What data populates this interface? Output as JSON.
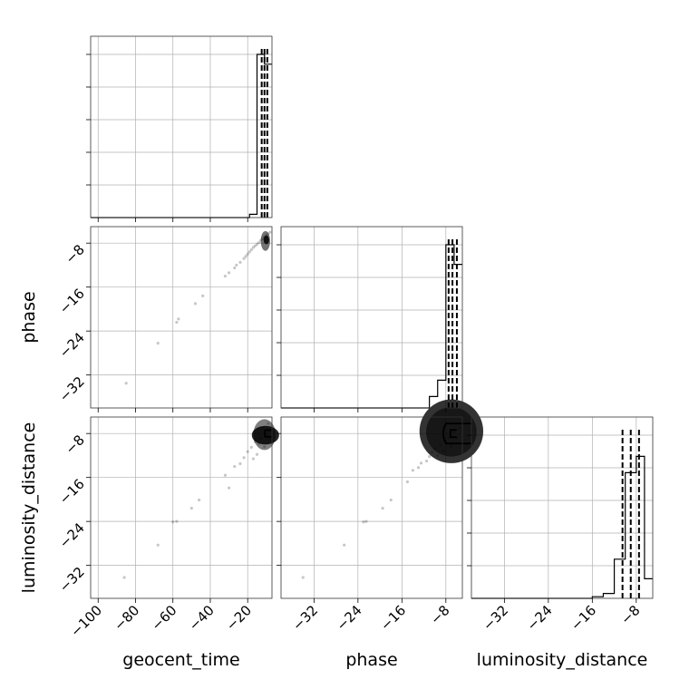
{
  "chart_data": {
    "type": "corner",
    "parameters": [
      "geocent_time",
      "phase",
      "luminosity_distance"
    ],
    "ranges": {
      "geocent_time": [
        -104,
        -7
      ],
      "phase": [
        -38,
        -5
      ],
      "luminosity_distance": [
        -38,
        -5
      ]
    },
    "ticks": {
      "geocent_time": [
        -100,
        -80,
        -60,
        -40,
        -20
      ],
      "phase": [
        -32,
        -24,
        -16,
        -8
      ],
      "luminosity_distance": [
        -32,
        -24,
        -16,
        -8
      ]
    },
    "tick_labels": {
      "geocent_time": [
        "−100",
        "−80",
        "−60",
        "−40",
        "−20"
      ],
      "phase": [
        "−32",
        "−24",
        "−16",
        "−8"
      ],
      "luminosity_distance": [
        "−32",
        "−24",
        "−16",
        "−8"
      ]
    },
    "axis_labels": {
      "bottom": [
        "geocent_time",
        "phase",
        "luminosity_distance"
      ],
      "left": [
        "phase",
        "luminosity_distance"
      ]
    },
    "grid": true,
    "histograms": {
      "geocent_time": {
        "bin_edges": [
          -19,
          -15,
          -11,
          -7
        ],
        "counts": [
          0.02,
          1.0,
          0.94
        ],
        "quantiles": [
          -12.5,
          -11.0,
          -9.5
        ]
      },
      "phase": {
        "bin_edges": [
          -11,
          -9.5,
          -8,
          -6.5,
          -5
        ],
        "counts": [
          0.07,
          0.17,
          1.0,
          0.88
        ],
        "quantiles": [
          -7.5,
          -6.8,
          -6.0
        ]
      },
      "luminosity_distance": {
        "bin_edges": [
          -16,
          -14,
          -12,
          -10,
          -8,
          -6.5,
          -5
        ],
        "counts": [
          0.01,
          0.03,
          0.24,
          0.77,
          0.87,
          0.12
        ],
        "quantiles": [
          -10.5,
          -9.0,
          -7.5
        ]
      }
    },
    "scatter": {
      "phase_vs_geocent_time": [
        [
          -85,
          -33.5
        ],
        [
          -68,
          -26.2
        ],
        [
          -58,
          -22.4
        ],
        [
          -57,
          -21.8
        ],
        [
          -48,
          -19
        ],
        [
          -44,
          -17.6
        ],
        [
          -32,
          -14
        ],
        [
          -30,
          -13.4
        ],
        [
          -27,
          -12.5
        ],
        [
          -26,
          -12
        ],
        [
          -24,
          -11.5
        ],
        [
          -22,
          -10.8
        ],
        [
          -21,
          -10.4
        ],
        [
          -20,
          -10
        ],
        [
          -19,
          -9.6
        ],
        [
          -18,
          -9.2
        ],
        [
          -17,
          -8.8
        ],
        [
          -16,
          -8.5
        ],
        [
          -15,
          -8.2
        ],
        [
          -14,
          -7.9
        ],
        [
          -13,
          -7.5
        ],
        [
          -12,
          -7.2
        ],
        [
          -11,
          -6.9
        ],
        [
          -10,
          -6.6
        ],
        [
          -9,
          -6.3
        ],
        [
          -8,
          -6
        ]
      ],
      "luminosity_distance_vs_geocent_time": [
        [
          -86,
          -34.2
        ],
        [
          -68,
          -28.3
        ],
        [
          -60,
          -24.1
        ],
        [
          -58,
          -24
        ],
        [
          -50,
          -21.6
        ],
        [
          -46,
          -20.1
        ],
        [
          -32,
          -15.6
        ],
        [
          -30,
          -17.9
        ],
        [
          -27,
          -14
        ],
        [
          -24,
          -13.5
        ],
        [
          -22,
          -12.4
        ],
        [
          -20,
          -11.3
        ],
        [
          -18,
          -10.5
        ],
        [
          -17,
          -12.6
        ],
        [
          -16,
          -9.5
        ],
        [
          -15,
          -11.8
        ],
        [
          -14,
          -9.8
        ],
        [
          -13,
          -8.9
        ],
        [
          -12,
          -7.1
        ],
        [
          -11,
          -10.4
        ],
        [
          -10,
          -8.3
        ],
        [
          -9,
          -6.2
        ],
        [
          -8,
          -9.1
        ]
      ],
      "luminosity_distance_vs_phase": [
        [
          -34,
          -34.2
        ],
        [
          -26.5,
          -28.3
        ],
        [
          -23,
          -24.1
        ],
        [
          -22.5,
          -24
        ],
        [
          -19.5,
          -21.6
        ],
        [
          -18,
          -20.1
        ],
        [
          -15,
          -16.8
        ],
        [
          -14,
          -14.7
        ],
        [
          -13,
          -14.2
        ],
        [
          -12.5,
          -13.4
        ],
        [
          -11.5,
          -13
        ],
        [
          -11,
          -12.2
        ],
        [
          -10.5,
          -11.4
        ],
        [
          -10,
          -10.8
        ],
        [
          -9.5,
          -12
        ],
        [
          -9,
          -10.1
        ],
        [
          -8.5,
          -11.2
        ],
        [
          -8,
          -9.5
        ],
        [
          -7.5,
          -8.7
        ],
        [
          -7,
          -10.3
        ],
        [
          -6.5,
          -7.6
        ],
        [
          -6,
          -8.8
        ],
        [
          -5.5,
          -7
        ]
      ]
    }
  }
}
